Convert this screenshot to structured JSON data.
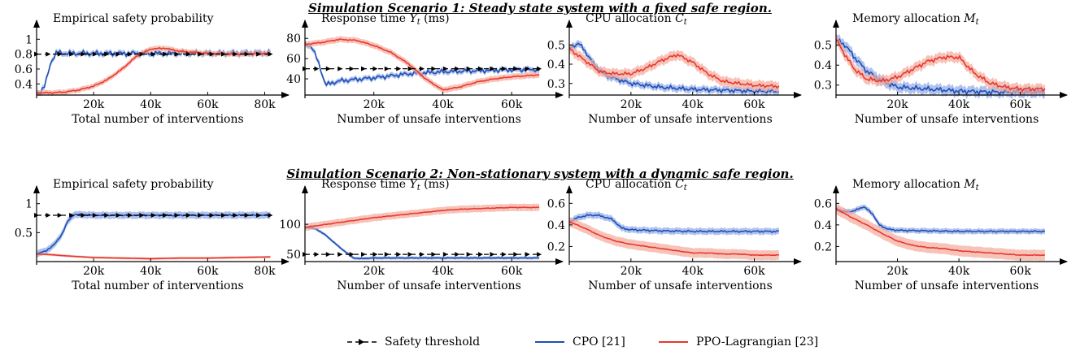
{
  "scenario_titles": [
    "Simulation Scenario 1: Steady state system with a fixed safe region.",
    "Simulation Scenario 2: Non-stationary system with a dynamic safe region."
  ],
  "legend": {
    "threshold": "Safety threshold",
    "cpo": "CPO [21]",
    "ppo": "PPO-Lagrangian [23]"
  },
  "colors": {
    "cpo": "#1f4fb5",
    "ppo": "#e8382f",
    "cpo_band": "#8fa8e6",
    "ppo_band": "#f4a99a",
    "threshold": "#000000"
  },
  "chart_data": [
    {
      "id": "s1-safety",
      "type": "line",
      "scenario": 1,
      "title": "Empirical safety probability",
      "xlabel": "Total number of interventions",
      "ylabel": "",
      "xlim": [
        0,
        85000
      ],
      "ylim": [
        0.25,
        1.08
      ],
      "xticks": [
        20000,
        40000,
        60000,
        80000
      ],
      "xtick_labels": [
        "20k",
        "40k",
        "60k",
        "80k"
      ],
      "yticks": [
        0.4,
        0.6,
        0.8,
        1.0
      ],
      "ytick_labels": [
        "0.4",
        "0.6",
        "0.8",
        "1"
      ],
      "threshold": {
        "value": 0.8,
        "x": [
          0,
          82000
        ]
      },
      "series": [
        {
          "name": "CPO [21]",
          "noise": 0.04,
          "band": 0.035,
          "x": [
            0,
            1500,
            3000,
            5000,
            7000,
            10000,
            20000,
            40000,
            60000,
            82000
          ],
          "y": [
            0.28,
            0.3,
            0.38,
            0.7,
            0.82,
            0.81,
            0.81,
            0.81,
            0.81,
            0.82
          ]
        },
        {
          "name": "PPO-Lagrangian [23]",
          "noise": 0.01,
          "band": 0.035,
          "x": [
            0,
            5000,
            10000,
            15000,
            20000,
            25000,
            30000,
            35000,
            40000,
            45000,
            50000,
            60000,
            70000,
            82000
          ],
          "y": [
            0.28,
            0.28,
            0.29,
            0.32,
            0.37,
            0.46,
            0.6,
            0.77,
            0.87,
            0.88,
            0.84,
            0.81,
            0.8,
            0.81
          ]
        }
      ]
    },
    {
      "id": "s1-response",
      "type": "line",
      "scenario": 1,
      "title": "Response time Y_t (ms)",
      "xlabel": "Number of unsafe interventions",
      "ylabel": "",
      "xlim": [
        0,
        72000
      ],
      "ylim": [
        24,
        85
      ],
      "xticks": [
        20000,
        40000,
        60000
      ],
      "xtick_labels": [
        "20k",
        "40k",
        "60k"
      ],
      "yticks": [
        40,
        60,
        80
      ],
      "ytick_labels": [
        "40",
        "60",
        "80"
      ],
      "threshold": {
        "value": 50,
        "x": [
          0,
          68000
        ]
      },
      "series": [
        {
          "name": "CPO [21]",
          "noise": 2.5,
          "band": 2.5,
          "x": [
            0,
            2000,
            4000,
            6000,
            10000,
            20000,
            30000,
            40000,
            50000,
            60000,
            68000
          ],
          "y": [
            74,
            72,
            55,
            34,
            38,
            41,
            45,
            47,
            48,
            49,
            49
          ]
        },
        {
          "name": "PPO-Lagrangian [23]",
          "noise": 0.6,
          "band": 3,
          "x": [
            0,
            5000,
            10000,
            15000,
            20000,
            25000,
            30000,
            35000,
            40000,
            45000,
            50000,
            55000,
            60000,
            68000
          ],
          "y": [
            74,
            76,
            79,
            78,
            73,
            66,
            55,
            40,
            29,
            32,
            37,
            40,
            42,
            44
          ]
        }
      ]
    },
    {
      "id": "s1-cpu",
      "type": "line",
      "scenario": 1,
      "title": "CPU allocation C_t",
      "xlabel": "Number of unsafe interventions",
      "ylabel": "",
      "xlim": [
        0,
        72000
      ],
      "ylim": [
        0.24,
        0.56
      ],
      "xticks": [
        20000,
        40000,
        60000
      ],
      "xtick_labels": [
        "20k",
        "40k",
        "60k"
      ],
      "yticks": [
        0.3,
        0.4,
        0.5
      ],
      "ytick_labels": [
        "0.3",
        "0.4",
        "0.5"
      ],
      "series": [
        {
          "name": "CPO [21]",
          "noise": 0.012,
          "band": 0.018,
          "x": [
            0,
            3000,
            5000,
            8000,
            12000,
            20000,
            30000,
            40000,
            50000,
            60000,
            68000
          ],
          "y": [
            0.48,
            0.51,
            0.47,
            0.4,
            0.34,
            0.3,
            0.28,
            0.27,
            0.265,
            0.26,
            0.26
          ]
        },
        {
          "name": "PPO-Lagrangian [23]",
          "noise": 0.01,
          "band": 0.025,
          "x": [
            0,
            5000,
            10000,
            15000,
            20000,
            25000,
            30000,
            35000,
            40000,
            45000,
            50000,
            55000,
            60000,
            68000
          ],
          "y": [
            0.48,
            0.42,
            0.36,
            0.35,
            0.35,
            0.38,
            0.42,
            0.45,
            0.41,
            0.35,
            0.31,
            0.3,
            0.29,
            0.285
          ]
        }
      ]
    },
    {
      "id": "s1-memory",
      "type": "line",
      "scenario": 1,
      "title": "Memory allocation M_t",
      "xlabel": "Number of unsafe interventions",
      "ylabel": "",
      "xlim": [
        0,
        72000
      ],
      "ylim": [
        0.25,
        0.56
      ],
      "xticks": [
        20000,
        40000,
        60000
      ],
      "xtick_labels": [
        "20k",
        "40k",
        "60k"
      ],
      "yticks": [
        0.3,
        0.4,
        0.5
      ],
      "ytick_labels": [
        "0.3",
        "0.4",
        "0.5"
      ],
      "series": [
        {
          "name": "CPO [21]",
          "noise": 0.014,
          "band": 0.025,
          "x": [
            0,
            3000,
            6000,
            10000,
            15000,
            20000,
            30000,
            40000,
            50000,
            60000,
            68000
          ],
          "y": [
            0.53,
            0.5,
            0.44,
            0.37,
            0.32,
            0.29,
            0.28,
            0.27,
            0.265,
            0.265,
            0.265
          ]
        },
        {
          "name": "PPO-Lagrangian [23]",
          "noise": 0.012,
          "band": 0.025,
          "x": [
            0,
            3000,
            6000,
            10000,
            15000,
            20000,
            25000,
            30000,
            35000,
            40000,
            45000,
            50000,
            55000,
            60000,
            68000
          ],
          "y": [
            0.53,
            0.45,
            0.38,
            0.33,
            0.32,
            0.34,
            0.38,
            0.42,
            0.44,
            0.44,
            0.36,
            0.31,
            0.29,
            0.28,
            0.28
          ]
        }
      ]
    },
    {
      "id": "s2-safety",
      "type": "line",
      "scenario": 2,
      "title": "Empirical safety probability",
      "xlabel": "Total number of interventions",
      "ylabel": "",
      "xlim": [
        0,
        85000
      ],
      "ylim": [
        0.0,
        1.08
      ],
      "xticks": [
        20000,
        40000,
        60000,
        80000
      ],
      "xtick_labels": [
        "20k",
        "40k",
        "60k",
        "80k"
      ],
      "yticks": [
        0.5,
        1.0
      ],
      "ytick_labels": [
        "0.5",
        "1"
      ],
      "threshold": {
        "value": 0.8,
        "x": [
          0,
          82000
        ]
      },
      "series": [
        {
          "name": "CPO [21]",
          "noise": 0.015,
          "band": 0.06,
          "x": [
            0,
            3000,
            6000,
            9000,
            11000,
            13000,
            16000,
            20000,
            40000,
            60000,
            82000
          ],
          "y": [
            0.13,
            0.18,
            0.28,
            0.48,
            0.7,
            0.81,
            0.81,
            0.8,
            0.8,
            0.8,
            0.8
          ]
        },
        {
          "name": "PPO-Lagrangian [23]",
          "noise": 0.0,
          "band": 0.02,
          "x": [
            0,
            5000,
            10000,
            20000,
            30000,
            40000,
            50000,
            60000,
            70000,
            82000
          ],
          "y": [
            0.13,
            0.12,
            0.1,
            0.07,
            0.06,
            0.05,
            0.06,
            0.06,
            0.07,
            0.08
          ]
        }
      ]
    },
    {
      "id": "s2-response",
      "type": "line",
      "scenario": 2,
      "title": "Response time Y_t (ms)",
      "xlabel": "Number of unsafe interventions",
      "ylabel": "",
      "xlim": [
        0,
        72000
      ],
      "ylim": [
        38,
        142
      ],
      "xticks": [
        20000,
        40000,
        60000
      ],
      "xtick_labels": [
        "20k",
        "40k",
        "60k"
      ],
      "yticks": [
        50,
        100
      ],
      "ytick_labels": [
        "50",
        "100"
      ],
      "threshold": {
        "value": 50,
        "x": [
          0,
          68000
        ]
      },
      "series": [
        {
          "name": "CPO [21]",
          "noise": 0.5,
          "band": 2.5,
          "x": [
            0,
            3000,
            6000,
            10000,
            14000,
            16000,
            20000,
            30000,
            40000,
            50000,
            60000,
            68000
          ],
          "y": [
            95,
            93,
            82,
            62,
            44,
            43,
            44,
            44,
            44,
            44,
            44,
            44
          ]
        },
        {
          "name": "PPO-Lagrangian [23]",
          "noise": 0.6,
          "band": 6,
          "x": [
            0,
            5000,
            10000,
            15000,
            20000,
            25000,
            30000,
            35000,
            40000,
            45000,
            50000,
            55000,
            60000,
            68000
          ],
          "y": [
            95,
            99,
            103,
            107,
            111,
            114,
            117,
            120,
            123,
            125,
            126,
            127,
            128,
            128
          ]
        }
      ]
    },
    {
      "id": "s2-cpu",
      "type": "line",
      "scenario": 2,
      "title": "CPU allocation C_t",
      "xlabel": "Number of unsafe interventions",
      "ylabel": "",
      "xlim": [
        0,
        72000
      ],
      "ylim": [
        0.06,
        0.64
      ],
      "xticks": [
        20000,
        40000,
        60000
      ],
      "xtick_labels": [
        "20k",
        "40k",
        "60k"
      ],
      "yticks": [
        0.2,
        0.4,
        0.6
      ],
      "ytick_labels": [
        "0.2",
        "0.4",
        "0.6"
      ],
      "series": [
        {
          "name": "CPO [21]",
          "noise": 0.01,
          "band": 0.03,
          "x": [
            0,
            3000,
            6000,
            9000,
            12000,
            14000,
            17000,
            20000,
            30000,
            40000,
            50000,
            60000,
            68000
          ],
          "y": [
            0.43,
            0.47,
            0.49,
            0.49,
            0.47,
            0.45,
            0.37,
            0.355,
            0.345,
            0.34,
            0.34,
            0.34,
            0.34
          ]
        },
        {
          "name": "PPO-Lagrangian [23]",
          "noise": 0.004,
          "band": 0.045,
          "x": [
            0,
            5000,
            10000,
            15000,
            20000,
            25000,
            30000,
            35000,
            40000,
            45000,
            50000,
            55000,
            60000,
            68000
          ],
          "y": [
            0.43,
            0.37,
            0.3,
            0.25,
            0.22,
            0.2,
            0.18,
            0.16,
            0.14,
            0.14,
            0.13,
            0.13,
            0.12,
            0.12
          ]
        }
      ]
    },
    {
      "id": "s2-memory",
      "type": "line",
      "scenario": 2,
      "title": "Memory allocation M_t",
      "xlabel": "Number of unsafe interventions",
      "ylabel": "",
      "xlim": [
        0,
        72000
      ],
      "ylim": [
        0.06,
        0.64
      ],
      "xticks": [
        20000,
        40000,
        60000
      ],
      "xtick_labels": [
        "20k",
        "40k",
        "60k"
      ],
      "yticks": [
        0.2,
        0.4,
        0.6
      ],
      "ytick_labels": [
        "0.2",
        "0.4",
        "0.6"
      ],
      "series": [
        {
          "name": "CPO [21]",
          "noise": 0.008,
          "band": 0.025,
          "x": [
            0,
            3000,
            6000,
            9000,
            12000,
            14000,
            17000,
            20000,
            30000,
            40000,
            50000,
            60000,
            68000
          ],
          "y": [
            0.55,
            0.52,
            0.53,
            0.57,
            0.5,
            0.4,
            0.36,
            0.35,
            0.345,
            0.34,
            0.34,
            0.34,
            0.34
          ]
        },
        {
          "name": "PPO-Lagrangian [23]",
          "noise": 0.004,
          "band": 0.05,
          "x": [
            0,
            5000,
            10000,
            15000,
            20000,
            25000,
            30000,
            35000,
            40000,
            45000,
            50000,
            55000,
            60000,
            68000
          ],
          "y": [
            0.55,
            0.47,
            0.4,
            0.32,
            0.25,
            0.21,
            0.19,
            0.18,
            0.16,
            0.15,
            0.14,
            0.13,
            0.12,
            0.12
          ]
        }
      ]
    }
  ]
}
